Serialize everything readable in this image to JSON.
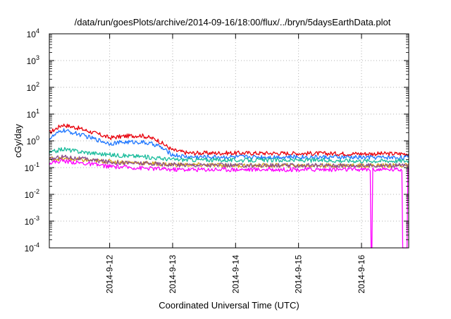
{
  "chart_data": {
    "type": "line",
    "title": "/data/run/goesPlots/archive/2014-09-16/18:00/flux/../bryn/5daysEarthData.plot",
    "xlabel": "Coordinated Universal Time (UTC)",
    "ylabel": "cGy/day",
    "yscale": "log",
    "ylim": [
      0.0001,
      10000
    ],
    "xlim": [
      "2014-09-11T01:00",
      "2014-09-16T18:00"
    ],
    "grid": true,
    "x_ticks": [
      "2014-9-12",
      "2014-9-13",
      "2014-9-14",
      "2014-9-15",
      "2014-9-16"
    ],
    "y_ticks": [
      {
        "mant": "10",
        "exp": "-4"
      },
      {
        "mant": "10",
        "exp": "-3"
      },
      {
        "mant": "10",
        "exp": "-2"
      },
      {
        "mant": "10",
        "exp": "-1"
      },
      {
        "mant": "10",
        "exp": "0"
      },
      {
        "mant": "10",
        "exp": "1"
      },
      {
        "mant": "10",
        "exp": "2"
      },
      {
        "mant": "10",
        "exp": "3"
      },
      {
        "mant": "10",
        "exp": "4"
      }
    ],
    "series": [
      {
        "color": "#e8000b",
        "x": [
          "2014-09-11T01:00",
          "2014-09-11T06:00",
          "2014-09-11T12:00",
          "2014-09-11T18:00",
          "2014-09-12T00:00",
          "2014-09-12T06:00",
          "2014-09-12T12:00",
          "2014-09-12T18:00",
          "2014-09-13T00:00",
          "2014-09-13T06:00",
          "2014-09-14T00:00",
          "2014-09-15T00:00",
          "2014-09-16T00:00",
          "2014-09-16T18:00"
        ],
        "values": [
          2.0,
          4.0,
          3.0,
          2.0,
          1.3,
          1.5,
          1.6,
          1.1,
          0.45,
          0.35,
          0.35,
          0.34,
          0.33,
          0.33
        ]
      },
      {
        "color": "#1f77ff",
        "x": [
          "2014-09-11T01:00",
          "2014-09-11T06:00",
          "2014-09-11T12:00",
          "2014-09-11T18:00",
          "2014-09-12T00:00",
          "2014-09-12T06:00",
          "2014-09-12T12:00",
          "2014-09-12T18:00",
          "2014-09-13T00:00",
          "2014-09-13T06:00",
          "2014-09-14T00:00",
          "2014-09-15T00:00",
          "2014-09-16T00:00",
          "2014-09-16T18:00"
        ],
        "values": [
          1.2,
          2.5,
          1.8,
          1.2,
          0.8,
          0.9,
          0.9,
          0.7,
          0.3,
          0.25,
          0.25,
          0.25,
          0.24,
          0.24
        ]
      },
      {
        "color": "#1abc9c",
        "x": [
          "2014-09-11T01:00",
          "2014-09-11T06:00",
          "2014-09-11T12:00",
          "2014-09-12T00:00",
          "2014-09-12T12:00",
          "2014-09-13T00:00",
          "2014-09-14T00:00",
          "2014-09-15T00:00",
          "2014-09-16T00:00",
          "2014-09-16T18:00"
        ],
        "values": [
          0.35,
          0.5,
          0.4,
          0.3,
          0.26,
          0.2,
          0.19,
          0.19,
          0.18,
          0.18
        ]
      },
      {
        "color": "#d4a017",
        "x": [
          "2014-09-11T01:00",
          "2014-09-12T00:00",
          "2014-09-13T00:00",
          "2014-09-14T00:00",
          "2014-09-15T00:00",
          "2014-09-16T00:00",
          "2014-09-16T18:00"
        ],
        "values": [
          0.22,
          0.17,
          0.13,
          0.12,
          0.12,
          0.12,
          0.12
        ]
      },
      {
        "color": "#8b4c8b",
        "x": [
          "2014-09-11T01:00",
          "2014-09-11T06:00",
          "2014-09-12T00:00",
          "2014-09-13T00:00",
          "2014-09-14T00:00",
          "2014-09-15T00:00",
          "2014-09-16T00:00",
          "2014-09-16T18:00"
        ],
        "values": [
          0.2,
          0.26,
          0.16,
          0.13,
          0.12,
          0.12,
          0.12,
          0.12
        ]
      },
      {
        "color": "#ff00ff",
        "x": [
          "2014-09-11T01:00",
          "2014-09-11T06:00",
          "2014-09-12T00:00",
          "2014-09-13T00:00",
          "2014-09-14T00:00",
          "2014-09-15T00:00",
          "2014-09-16T00:00",
          "2014-09-16T18:00"
        ],
        "values": [
          0.15,
          0.18,
          0.11,
          0.085,
          0.085,
          0.085,
          0.085,
          0.085
        ],
        "dropouts": [
          [
            "2014-09-16T03:30",
            "2014-09-16T04:10"
          ],
          [
            "2014-09-16T15:30",
            "2014-09-16T17:30"
          ]
        ]
      }
    ]
  }
}
